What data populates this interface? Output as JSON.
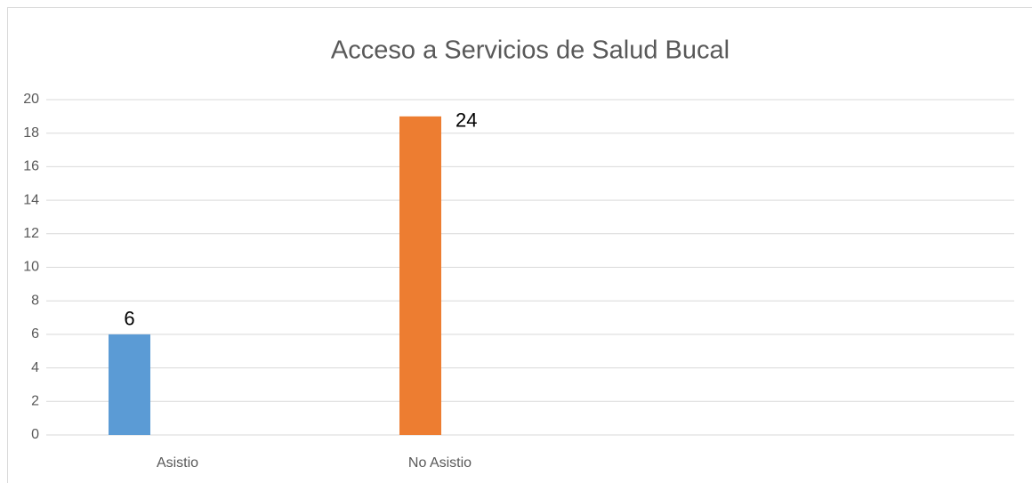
{
  "chart_data": {
    "type": "bar",
    "title": "Acceso a Servicios de Salud Bucal",
    "categories": [
      "Asistio",
      "No Asistio"
    ],
    "values": [
      6,
      19
    ],
    "colors": [
      "#5b9bd5",
      "#ed7d31"
    ],
    "annotations": [
      {
        "text": "24"
      }
    ],
    "ylim": [
      0,
      20
    ],
    "yticks": [
      0,
      2,
      4,
      6,
      8,
      10,
      12,
      14,
      16,
      18,
      20
    ],
    "grid": true
  }
}
